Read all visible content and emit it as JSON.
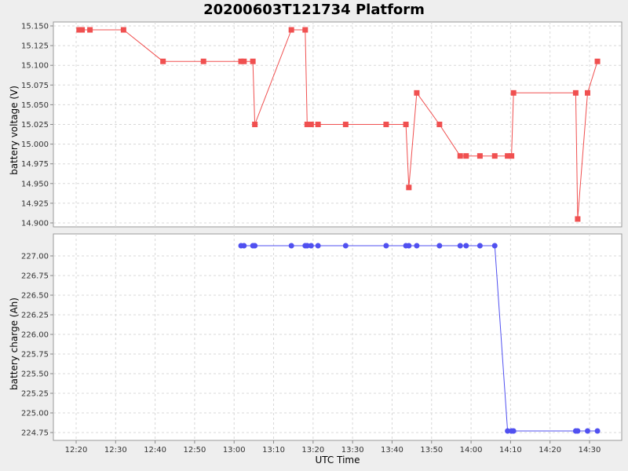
{
  "chart_data": {
    "type": "line",
    "title": "20200603T121734 Platform",
    "xlabel": "UTC Time",
    "x_ticks": [
      "12:20",
      "12:30",
      "12:40",
      "12:50",
      "13:00",
      "13:10",
      "13:20",
      "13:30",
      "13:40",
      "13:50",
      "14:00",
      "14:10",
      "14:20",
      "14:30"
    ],
    "grid": true,
    "panels": [
      {
        "ylabel": "battery voltage (V)",
        "ylim": [
          14.895,
          15.155
        ],
        "y_ticks": [
          "14.900",
          "14.925",
          "14.950",
          "14.975",
          "15.000",
          "15.025",
          "15.050",
          "15.075",
          "15.100",
          "15.125",
          "15.150"
        ],
        "y_tick_values": [
          14.9,
          14.925,
          14.95,
          14.975,
          15.0,
          15.025,
          15.05,
          15.075,
          15.1,
          15.125,
          15.15
        ],
        "color": "#f05050",
        "marker": "square",
        "x": [
          "12:20:45",
          "12:21:30",
          "12:23:30",
          "12:32:00",
          "12:42:00",
          "12:52:15",
          "13:01:45",
          "13:02:30",
          "13:04:45",
          "13:05:15",
          "13:14:30",
          "13:18:00",
          "13:18:30",
          "13:19:30",
          "13:21:15",
          "13:28:15",
          "13:38:30",
          "13:43:30",
          "13:44:15",
          "13:46:15",
          "13:52:00",
          "13:57:15",
          "13:58:45",
          "14:02:15",
          "14:06:00",
          "14:09:15",
          "14:10:15",
          "14:10:45",
          "14:26:30",
          "14:27:00",
          "14:29:30",
          "14:32:00"
        ],
        "values": [
          15.145,
          15.145,
          15.145,
          15.145,
          15.105,
          15.105,
          15.105,
          15.105,
          15.105,
          15.025,
          15.145,
          15.145,
          15.025,
          15.025,
          15.025,
          15.025,
          15.025,
          15.025,
          14.945,
          15.065,
          15.025,
          14.985,
          14.985,
          14.985,
          14.985,
          14.985,
          14.985,
          15.065,
          15.065,
          14.905,
          15.065,
          15.105
        ]
      },
      {
        "ylabel": "battery charge (Ah)",
        "ylim": [
          224.65,
          227.28
        ],
        "y_ticks": [
          "224.75",
          "225.00",
          "225.25",
          "225.50",
          "225.75",
          "226.00",
          "226.25",
          "226.50",
          "226.75",
          "227.00"
        ],
        "y_tick_values": [
          224.75,
          225.0,
          225.25,
          225.5,
          225.75,
          226.0,
          226.25,
          226.5,
          226.75,
          227.0
        ],
        "color": "#5050f0",
        "marker": "circle",
        "x": [
          "13:01:45",
          "13:02:30",
          "13:04:45",
          "13:05:15",
          "13:14:30",
          "13:18:00",
          "13:18:30",
          "13:19:30",
          "13:21:15",
          "13:28:15",
          "13:38:30",
          "13:43:30",
          "13:44:15",
          "13:46:15",
          "13:52:00",
          "13:57:15",
          "13:58:45",
          "14:02:15",
          "14:06:00",
          "14:09:15",
          "14:10:15",
          "14:10:45",
          "14:26:30",
          "14:27:00",
          "14:29:30",
          "14:32:00"
        ],
        "values": [
          227.13,
          227.13,
          227.13,
          227.13,
          227.13,
          227.13,
          227.13,
          227.13,
          227.13,
          227.13,
          227.13,
          227.13,
          227.13,
          227.13,
          227.13,
          227.13,
          227.13,
          227.13,
          227.13,
          224.77,
          224.77,
          224.77,
          224.77,
          224.77,
          224.77,
          224.77
        ]
      }
    ]
  }
}
